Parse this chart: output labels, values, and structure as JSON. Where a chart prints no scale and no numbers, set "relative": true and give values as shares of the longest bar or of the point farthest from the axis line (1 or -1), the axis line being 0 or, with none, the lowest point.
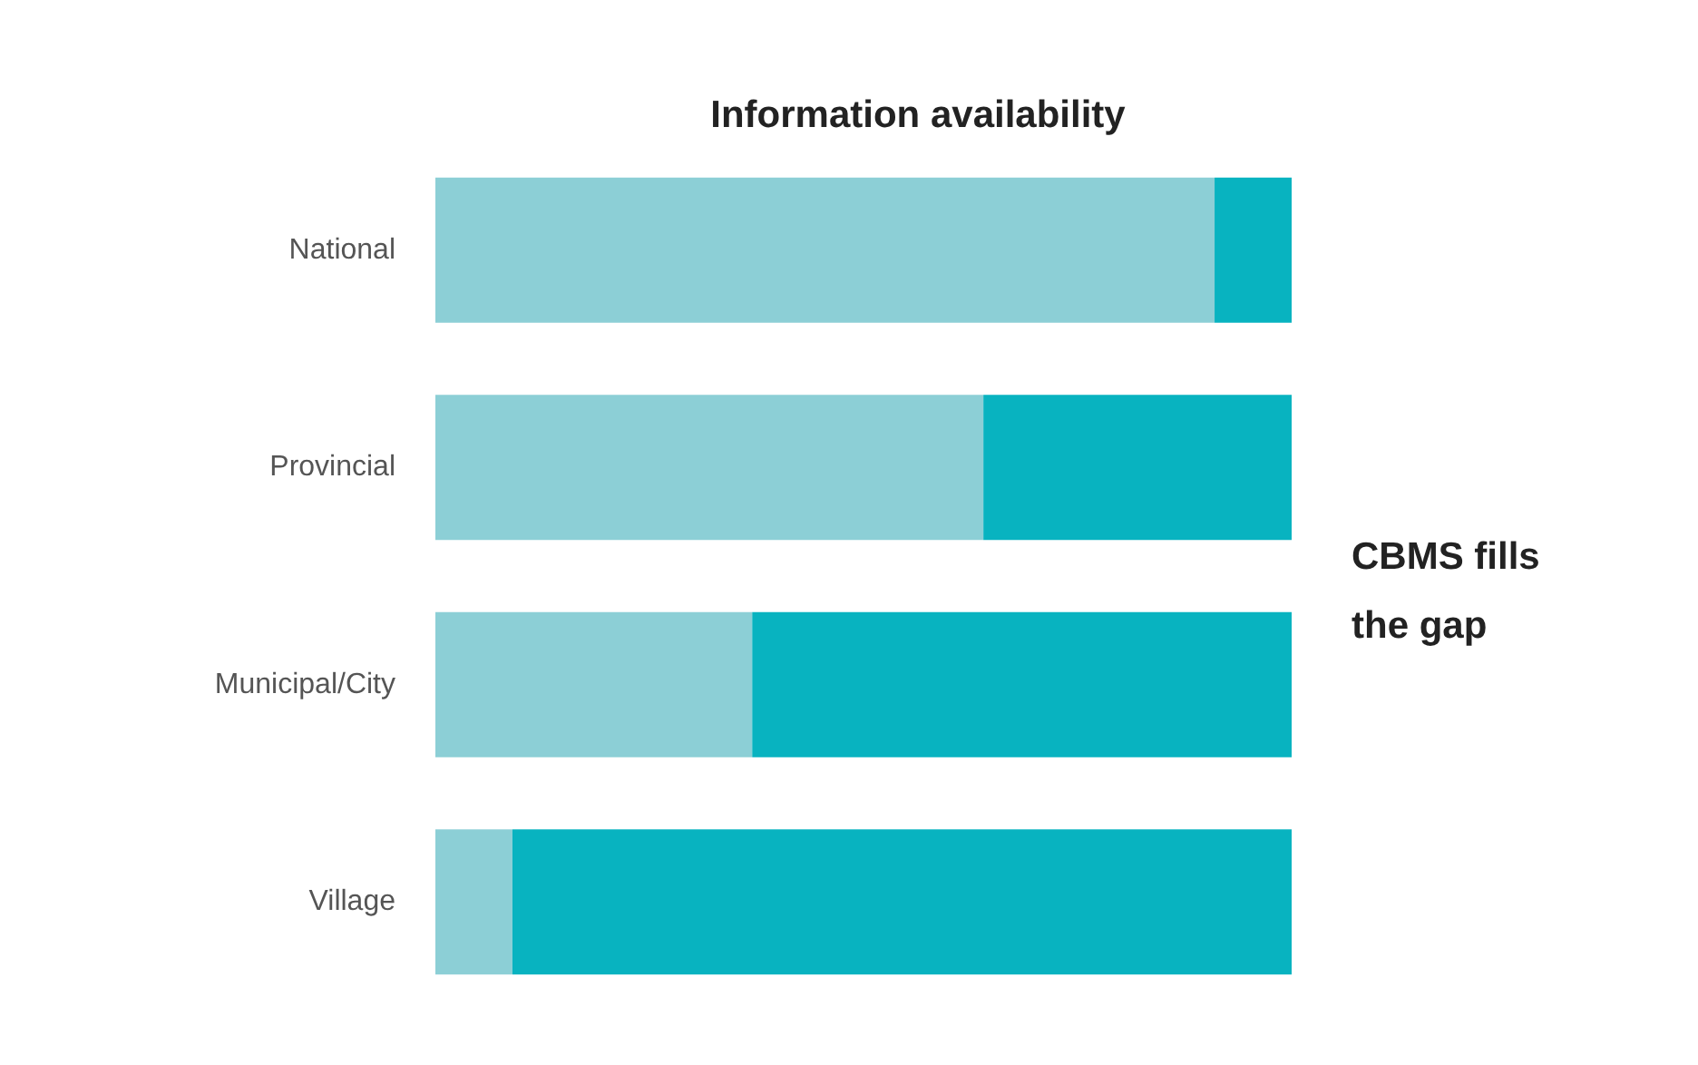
{
  "chart_data": {
    "type": "bar",
    "orientation": "horizontal",
    "stacked": true,
    "relative": true,
    "title": "Information availability",
    "categories": [
      "National",
      "Provincial",
      "Municipal/City",
      "Village"
    ],
    "series": [
      {
        "color": "#8ccfd6",
        "values": [
          0.91,
          0.64,
          0.37,
          0.09
        ]
      },
      {
        "color": "#08b3c0",
        "values": [
          0.09,
          0.36,
          0.63,
          0.91
        ]
      }
    ],
    "annotations": [
      "CBMS fills the gap"
    ]
  }
}
